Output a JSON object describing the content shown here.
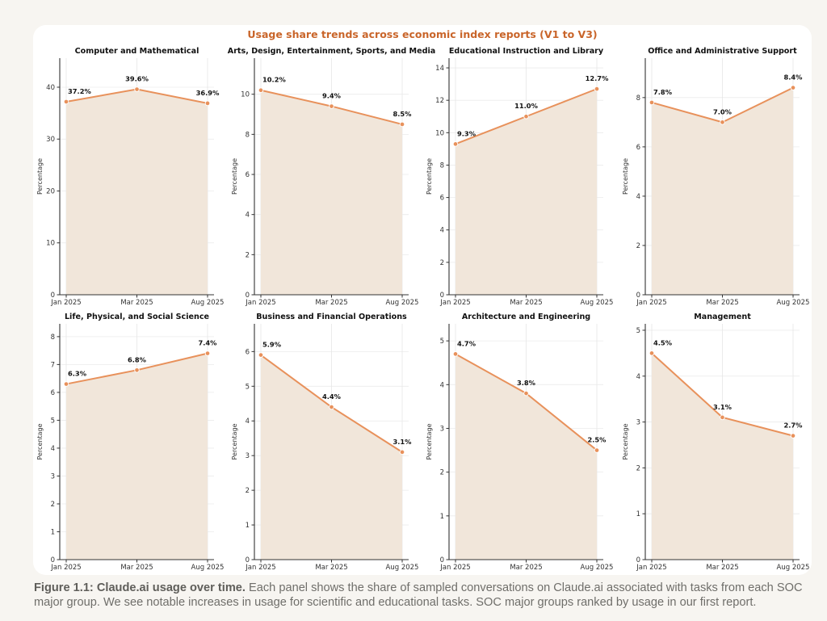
{
  "figure": {
    "title": "Usage share trends across economic index reports (V1 to V3)",
    "caption_bold": "Figure 1.1: Claude.ai usage over time.",
    "caption_text": " Each panel shows the share of sampled conversations on Claude.ai associated with tasks from each SOC major group. We see notable increases in usage for scientific and educational tasks. SOC major groups ranked by usage in our first report."
  },
  "colors": {
    "line": "#e8915b",
    "fill": "#f1e6da",
    "title": "#c9652a",
    "page_background": "#f7f5f1"
  },
  "chart_data": [
    {
      "type": "area",
      "title": "Computer and Mathematical",
      "categories": [
        "Jan 2025",
        "Mar 2025",
        "Aug 2025"
      ],
      "values": [
        37.2,
        39.6,
        36.9
      ],
      "labels": [
        "37.2%",
        "39.6%",
        "36.9%"
      ],
      "ylabel": "Percentage",
      "ylim": [
        0,
        45.6
      ],
      "yticks": [
        0,
        10,
        20,
        30,
        40
      ],
      "grid": true
    },
    {
      "type": "area",
      "title": "Arts, Design, Entertainment, Sports, and Media",
      "categories": [
        "Jan 2025",
        "Mar 2025",
        "Aug 2025"
      ],
      "values": [
        10.2,
        9.4,
        8.5
      ],
      "labels": [
        "10.2%",
        "9.4%",
        "8.5%"
      ],
      "ylabel": "Percentage",
      "ylim": [
        0,
        11.8
      ],
      "yticks": [
        0,
        2,
        4,
        6,
        8,
        10
      ],
      "grid": true
    },
    {
      "type": "area",
      "title": "Educational Instruction and Library",
      "categories": [
        "Jan 2025",
        "Mar 2025",
        "Aug 2025"
      ],
      "values": [
        9.3,
        11.0,
        12.7
      ],
      "labels": [
        "9.3%",
        "11.0%",
        "12.7%"
      ],
      "ylabel": "Percentage",
      "ylim": [
        0,
        14.6
      ],
      "yticks": [
        0,
        2,
        4,
        6,
        8,
        10,
        12,
        14
      ],
      "grid": true
    },
    {
      "type": "area",
      "title": "Office and Administrative Support",
      "categories": [
        "Jan 2025",
        "Mar 2025",
        "Aug 2025"
      ],
      "values": [
        7.8,
        7.0,
        8.4
      ],
      "labels": [
        "7.8%",
        "7.0%",
        "8.4%"
      ],
      "ylabel": "Percentage",
      "ylim": [
        0,
        9.6
      ],
      "yticks": [
        0,
        2,
        4,
        6,
        8
      ],
      "grid": true
    },
    {
      "type": "area",
      "title": "Life, Physical, and Social Science",
      "categories": [
        "Jan 2025",
        "Mar 2025",
        "Aug 2025"
      ],
      "values": [
        6.3,
        6.8,
        7.4
      ],
      "labels": [
        "6.3%",
        "6.8%",
        "7.4%"
      ],
      "ylabel": "Percentage",
      "ylim": [
        0,
        8.46
      ],
      "yticks": [
        0,
        1,
        2,
        3,
        4,
        5,
        6,
        7,
        8
      ],
      "grid": true
    },
    {
      "type": "area",
      "title": "Business and Financial Operations",
      "categories": [
        "Jan 2025",
        "Mar 2025",
        "Aug 2025"
      ],
      "values": [
        5.9,
        4.4,
        3.1
      ],
      "labels": [
        "5.9%",
        "4.4%",
        "3.1%"
      ],
      "ylabel": "Percentage",
      "ylim": [
        0,
        6.8
      ],
      "yticks": [
        0,
        1,
        2,
        3,
        4,
        5,
        6
      ],
      "grid": true
    },
    {
      "type": "area",
      "title": "Architecture and Engineering",
      "categories": [
        "Jan 2025",
        "Mar 2025",
        "Aug 2025"
      ],
      "values": [
        4.7,
        3.8,
        2.5
      ],
      "labels": [
        "4.7%",
        "3.8%",
        "2.5%"
      ],
      "ylabel": "Percentage",
      "ylim": [
        0,
        5.39
      ],
      "yticks": [
        0,
        1,
        2,
        3,
        4,
        5
      ],
      "grid": true
    },
    {
      "type": "area",
      "title": "Management",
      "categories": [
        "Jan 2025",
        "Mar 2025",
        "Aug 2025"
      ],
      "values": [
        4.5,
        3.1,
        2.7
      ],
      "labels": [
        "4.5%",
        "3.1%",
        "2.7%"
      ],
      "ylabel": "Percentage",
      "ylim": [
        0,
        5.14
      ],
      "yticks": [
        0,
        1,
        2,
        3,
        4,
        5
      ],
      "grid": true
    }
  ]
}
